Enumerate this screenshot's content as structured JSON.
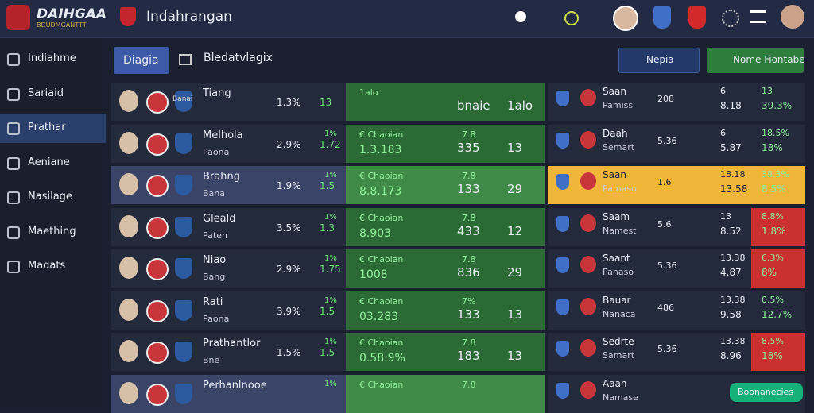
{
  "header": {
    "brand": "DAIHGAA",
    "brand_sub": "BDUDMGANTTT",
    "title": "Indahrangan"
  },
  "sidebar": {
    "items": [
      "Indiahme",
      "Sariaid",
      "Prathar",
      "Aeniane",
      "Nasilage",
      "Maething",
      "Madats"
    ],
    "active": 2
  },
  "tabs": [
    "Diagia",
    "Bledatvlagix"
  ],
  "buttons": [
    "Nepia",
    "Nome Fiontabe"
  ],
  "left_rows": [
    {
      "tag": "Banai",
      "name": "Tiang",
      "pct": "1.3%",
      "num": "13",
      "odds_label": "1alo",
      "score": "bnaie",
      "result": "1alo"
    },
    {
      "name": "Melhola",
      "sub": "Paona",
      "pct": "2.9%",
      "delta": "1%",
      "num": "1.72",
      "odds_label": "€ Chaoian",
      "odds": "1.3.183",
      "top": "7.8",
      "score": "335",
      "result": "13"
    },
    {
      "name": "Brahng",
      "sub": "Bana",
      "pct": "1.9%",
      "delta": "1%",
      "num": "1.5",
      "odds_label": "€ Chaoian",
      "odds": "8.8.173",
      "top": "7.8",
      "score": "133",
      "result": "29"
    },
    {
      "name": "Gleald",
      "sub": "Paten",
      "pct": "3.5%",
      "delta": "1%",
      "num": "1.3",
      "odds_label": "€ Chaoian",
      "odds": "8.903",
      "top": "7.8",
      "score": "433",
      "result": "12"
    },
    {
      "name": "Niao",
      "sub": "Bang",
      "pct": "2.9%",
      "delta": "1%",
      "num": "1.75",
      "odds_label": "€ Chaoian",
      "odds": "1008",
      "top": "7.8",
      "score": "836",
      "result": "29"
    },
    {
      "name": "Rati",
      "sub": "Paona",
      "pct": "3.9%",
      "delta": "1%",
      "num": "1.5",
      "odds_label": "€ Chaoian",
      "odds": "03.283",
      "top": "7%",
      "score": "133",
      "result": "13"
    },
    {
      "name": "Prathantlor",
      "sub": "Bne",
      "pct": "1.5%",
      "delta": "1%",
      "num": "1.5",
      "odds_label": "€ Chaoian",
      "odds": "0.58.9%",
      "top": "7.8",
      "score": "183",
      "result": "13"
    },
    {
      "name": "Perhanlnooe",
      "delta": "1%",
      "odds_label": "€ Chaoian",
      "top": "7.8"
    }
  ],
  "right_rows": [
    {
      "name": "Saan",
      "sub": "Pamiss",
      "mid": "208",
      "v1": "6",
      "v2": "8.18",
      "v3": "13",
      "v4": "39.3%",
      "style": "plain"
    },
    {
      "name": "Daah",
      "sub": "Semart",
      "mid": "5.36",
      "v1": "6",
      "v2": "5.87",
      "v3": "18.5%",
      "v4": "18%",
      "style": "plain"
    },
    {
      "name": "Saan",
      "sub": "Pamaso",
      "mid": "1.6",
      "v1": "18.18",
      "v2": "13.58",
      "v3": "38.3%",
      "v4": "8.5%",
      "style": "gold"
    },
    {
      "name": "Saam",
      "sub": "Namest",
      "mid": "5.6",
      "v1": "13",
      "v2": "8.52",
      "v3": "8.8%",
      "v4": "1.8%",
      "style": "red"
    },
    {
      "name": "Saant",
      "sub": "Panaso",
      "mid": "5.36",
      "v1": "13.38",
      "v2": "4.87",
      "v3": "6.3%",
      "v4": "8%",
      "style": "red"
    },
    {
      "name": "Bauar",
      "sub": "Nanaca",
      "mid": "486",
      "v1": "13.38",
      "v2": "9.58",
      "v3": "0.5%",
      "v4": "12.7%",
      "style": "plain"
    },
    {
      "name": "Sedrte",
      "sub": "Samart",
      "mid": "5.36",
      "v1": "13.38",
      "v2": "8.96",
      "v3": "8.5%",
      "v4": "18%",
      "style": "red"
    },
    {
      "name": "Aaah",
      "sub": "Namase",
      "style": "plain"
    }
  ],
  "footer_button": "Boonanecies"
}
